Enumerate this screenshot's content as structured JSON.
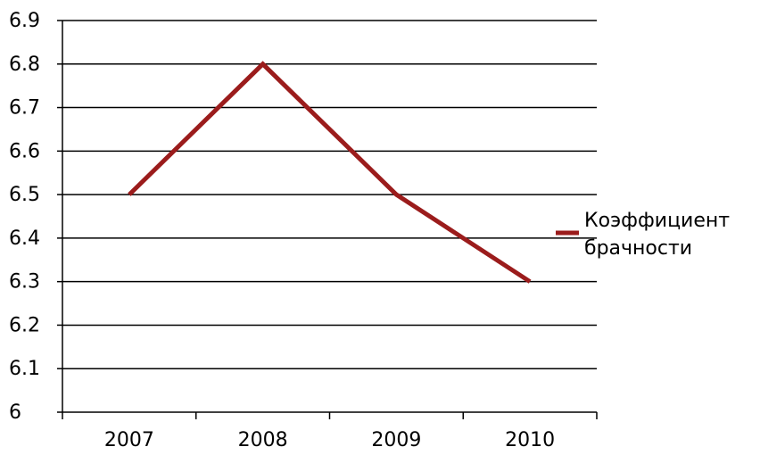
{
  "chart_data": {
    "type": "line",
    "categories": [
      "2007",
      "2008",
      "2009",
      "2010"
    ],
    "series": [
      {
        "name": "Коэффициент брачности",
        "values": [
          6.5,
          6.8,
          6.5,
          6.3
        ]
      }
    ],
    "ylim": [
      6.0,
      6.9
    ],
    "yticks": [
      "6",
      "6.1",
      "6.2",
      "6.3",
      "6.4",
      "6.5",
      "6.6",
      "6.7",
      "6.8",
      "6.9"
    ],
    "grid": true,
    "legend_position": "right",
    "legend_lines": [
      "Коэффициент",
      "брачности"
    ],
    "colors": {
      "series": "#9b1c1c",
      "grid": "#000000",
      "axis": "#000000"
    }
  }
}
